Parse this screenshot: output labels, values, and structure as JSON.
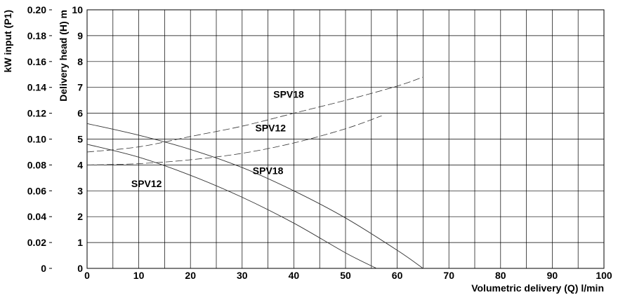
{
  "chart_data": {
    "type": "line",
    "xlabel": "Volumetric delivery (Q) l/min",
    "ylabel": "Delivery head (H) m",
    "y2label": "kW input (P1)",
    "xlim": [
      0,
      100
    ],
    "ylim": [
      0,
      10
    ],
    "y2lim": [
      0,
      0.2
    ],
    "x_ticks": [
      "0",
      "10",
      "20",
      "30",
      "40",
      "50",
      "60",
      "70",
      "80",
      "90",
      "100"
    ],
    "y_ticks": [
      "0",
      "1",
      "2",
      "3",
      "4",
      "5",
      "6",
      "7",
      "8",
      "9",
      "10"
    ],
    "y2_ticks": [
      "0",
      "0.02",
      "0.04",
      "0.06",
      "0.08",
      "0.10",
      "0.12",
      "0.14",
      "0.16",
      "0.18",
      "0.20"
    ],
    "grid": true,
    "head_curves": [
      {
        "name": "SPV12",
        "x": [
          0,
          10,
          20,
          30,
          40,
          50,
          56
        ],
        "y": [
          4.8,
          4.3,
          3.6,
          2.75,
          1.75,
          0.6,
          0
        ]
      },
      {
        "name": "SPV18",
        "x": [
          0,
          10,
          20,
          30,
          40,
          50,
          60,
          65
        ],
        "y": [
          5.6,
          5.15,
          4.6,
          3.9,
          3.0,
          1.95,
          0.7,
          0
        ]
      }
    ],
    "power_curves": [
      {
        "name": "SPV12",
        "x": [
          0,
          10,
          20,
          30,
          40,
          50,
          57
        ],
        "y": [
          0.08,
          0.081,
          0.084,
          0.089,
          0.097,
          0.108,
          0.118
        ]
      },
      {
        "name": "SPV18",
        "x": [
          0,
          10,
          20,
          30,
          40,
          50,
          60,
          65
        ],
        "y": [
          0.09,
          0.094,
          0.102,
          0.11,
          0.12,
          0.13,
          0.141,
          0.148
        ]
      }
    ],
    "annotations": [
      {
        "text": "SPV18",
        "x": 39,
        "y": 6.6
      },
      {
        "text": "SPV12",
        "x": 35.5,
        "y": 5.3
      },
      {
        "text": "SPV18",
        "x": 35,
        "y": 3.65
      },
      {
        "text": "SPV12",
        "x": 11.5,
        "y": 3.15
      }
    ]
  }
}
